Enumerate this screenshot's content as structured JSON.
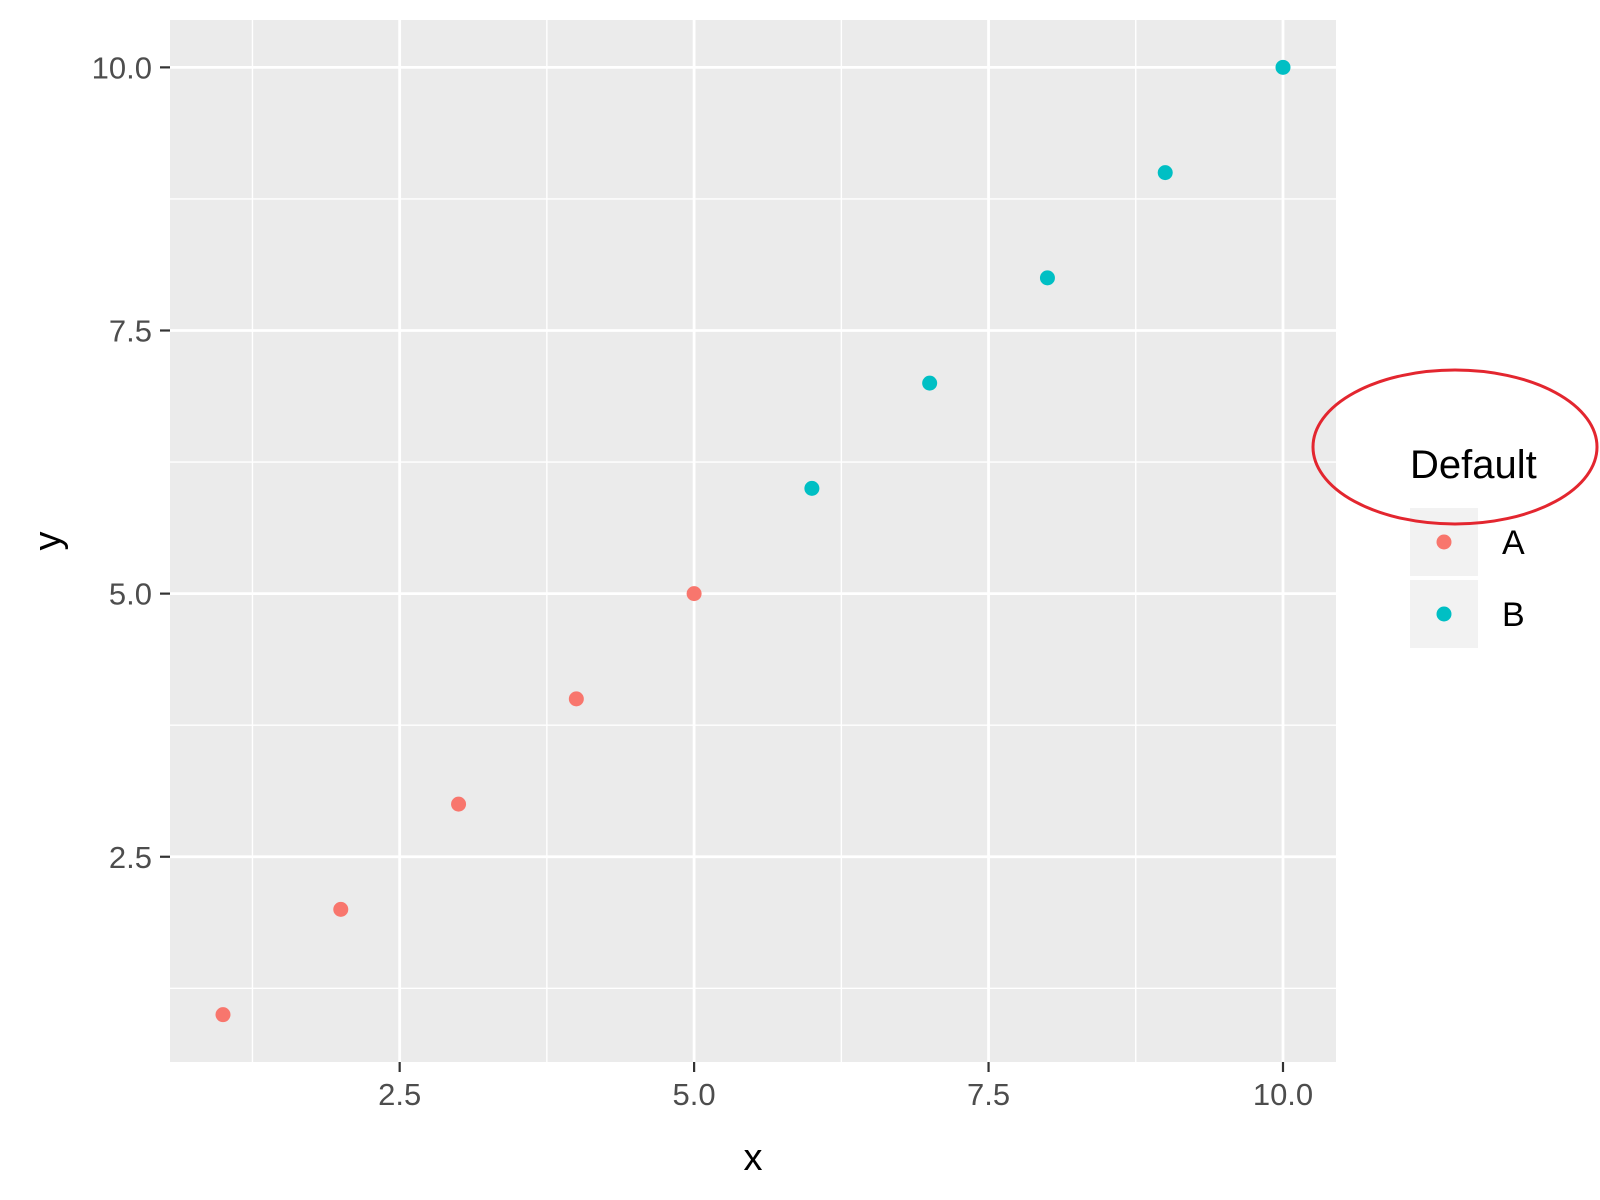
{
  "chart_data": {
    "type": "scatter",
    "xlabel": "x",
    "ylabel": "y",
    "xlim": [
      0.55,
      10.45
    ],
    "ylim": [
      0.55,
      10.45
    ],
    "x_ticks": [
      2.5,
      5.0,
      7.5,
      10.0
    ],
    "x_tick_labels": [
      "2.5",
      "5.0",
      "7.5",
      "10.0"
    ],
    "y_ticks": [
      2.5,
      5.0,
      7.5,
      10.0
    ],
    "y_tick_labels": [
      "2.5",
      "5.0",
      "7.5",
      "10.0"
    ],
    "grid": true,
    "panel_background": "#ebebeb",
    "legend": {
      "title": "Default",
      "placement": "right",
      "entries": [
        {
          "label": "A",
          "color": "#f8766d"
        },
        {
          "label": "B",
          "color": "#00bfc4"
        }
      ]
    },
    "annotation": {
      "shape": "ellipse",
      "target": "legend-title",
      "color": "#e3262f"
    },
    "series": [
      {
        "group": "A",
        "color": "#f8766d",
        "x": [
          1,
          2,
          3,
          4,
          5
        ],
        "y": [
          1,
          2,
          3,
          4,
          5
        ]
      },
      {
        "group": "B",
        "color": "#00bfc4",
        "x": [
          6,
          7,
          8,
          9,
          10
        ],
        "y": [
          6,
          7,
          8,
          9,
          10
        ]
      }
    ]
  }
}
